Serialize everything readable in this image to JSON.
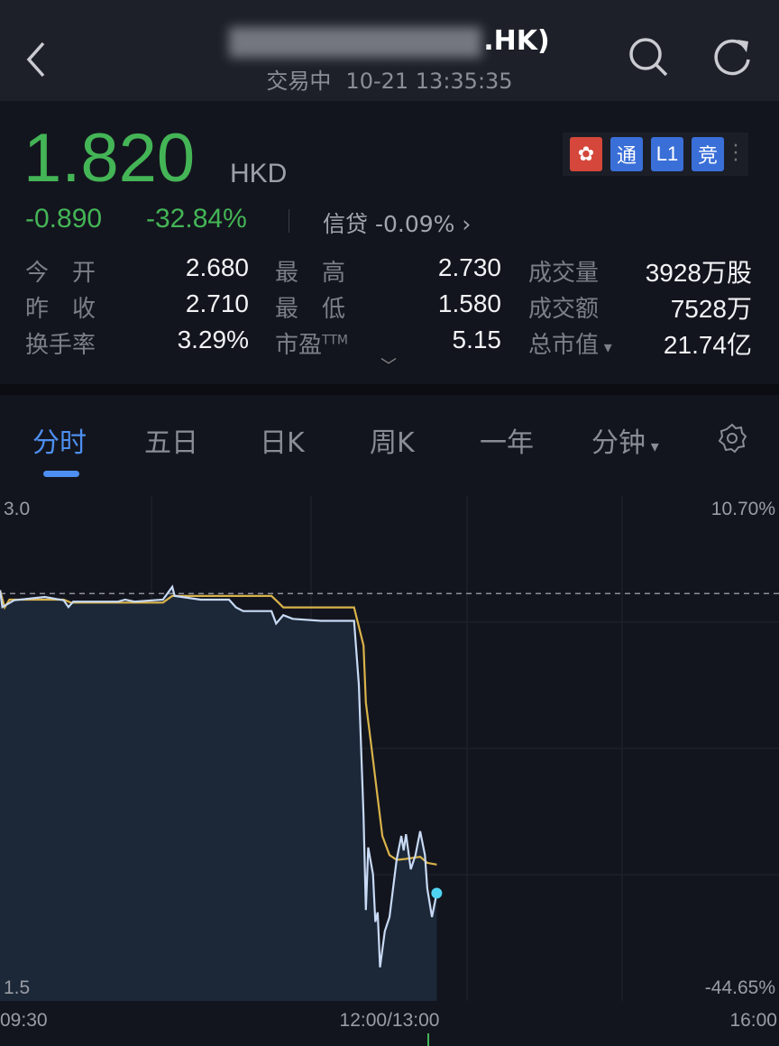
{
  "header": {
    "title_suffix": ".HK)",
    "status": "交易中",
    "datetime": "10-21 13:35:35",
    "icons": [
      "back-icon",
      "search-icon",
      "refresh-icon"
    ]
  },
  "quote": {
    "price": "1.820",
    "currency": "HKD",
    "change": "-0.890",
    "change_pct": "-32.84%",
    "credit_label": "信贷",
    "credit_value": "-0.09%",
    "price_color": "#44b556",
    "badges": [
      "hk-flag",
      "通",
      "L1",
      "竞"
    ]
  },
  "stats": [
    {
      "label": "今　开",
      "value": "2.680"
    },
    {
      "label": "最　高",
      "value": "2.730"
    },
    {
      "label": "成交量",
      "value": "3928万股"
    },
    {
      "label": "昨　收",
      "value": "2.710"
    },
    {
      "label": "最　低",
      "value": "1.580"
    },
    {
      "label": "成交额",
      "value": "7528万"
    },
    {
      "label": "换手率",
      "value": "3.29%"
    },
    {
      "label": "市盈",
      "sup": "TTM",
      "value": "5.15"
    },
    {
      "label": "总市值",
      "value": "21.74亿"
    }
  ],
  "tabs": [
    {
      "label": "分时",
      "active": true
    },
    {
      "label": "五日"
    },
    {
      "label": "日K"
    },
    {
      "label": "周K"
    },
    {
      "label": "一年"
    },
    {
      "label": "分钟"
    }
  ],
  "chart_data": {
    "type": "line",
    "y_left_ticks": [
      "3.0",
      "1.5"
    ],
    "y_right_ticks": [
      "10.70%",
      "-44.65%"
    ],
    "x_ticks": [
      "09:30",
      "12:00/13:00",
      "16:00"
    ],
    "ylim": [
      1.5,
      3.0
    ],
    "prev_close": 2.71,
    "colors": {
      "price": "#c8daf5",
      "avg": "#d9b34a",
      "fill": "#1c2838",
      "last_point": "#4fd3f0"
    },
    "series": [
      {
        "key": "price",
        "points": [
          [
            "09:30",
            2.72
          ],
          [
            "09:31",
            2.67
          ],
          [
            "09:36",
            2.69
          ],
          [
            "09:49",
            2.7
          ],
          [
            "09:57",
            2.69
          ],
          [
            "09:59",
            2.67
          ],
          [
            "10:01",
            2.686
          ],
          [
            "10:20",
            2.686
          ],
          [
            "10:23",
            2.692
          ],
          [
            "10:27",
            2.686
          ],
          [
            "10:39",
            2.692
          ],
          [
            "10:41",
            2.711
          ],
          [
            "10:43",
            2.73
          ],
          [
            "10:44",
            2.703
          ],
          [
            "10:55",
            2.692
          ],
          [
            "11:07",
            2.692
          ],
          [
            "11:10",
            2.669
          ],
          [
            "11:13",
            2.658
          ],
          [
            "11:25",
            2.658
          ],
          [
            "11:27",
            2.621
          ],
          [
            "11:30",
            2.646
          ],
          [
            "11:34",
            2.635
          ],
          [
            "11:46",
            2.629
          ],
          [
            "13:00",
            2.629
          ],
          [
            "13:02",
            2.44
          ],
          [
            "13:04",
            2.05
          ],
          [
            "13:05",
            1.77
          ],
          [
            "13:06",
            1.956
          ],
          [
            "13:08",
            1.876
          ],
          [
            "13:09",
            1.735
          ],
          [
            "13:10",
            1.763
          ],
          [
            "13:11",
            1.6
          ],
          [
            "13:13",
            1.707
          ],
          [
            "13:15",
            1.749
          ],
          [
            "13:18",
            1.919
          ],
          [
            "13:20",
            1.99
          ],
          [
            "13:21",
            1.947
          ],
          [
            "13:22",
            1.995
          ],
          [
            "13:24",
            1.891
          ],
          [
            "13:26",
            1.933
          ],
          [
            "13:28",
            2.004
          ],
          [
            "13:30",
            1.933
          ],
          [
            "13:31",
            1.834
          ],
          [
            "13:33",
            1.749
          ],
          [
            "13:35",
            1.82
          ]
        ]
      },
      {
        "key": "avg",
        "points": [
          [
            "09:30",
            2.72
          ],
          [
            "09:32",
            2.669
          ],
          [
            "09:34",
            2.692
          ],
          [
            "09:57",
            2.692
          ],
          [
            "10:00",
            2.683
          ],
          [
            "10:39",
            2.683
          ],
          [
            "10:43",
            2.703
          ],
          [
            "11:25",
            2.703
          ],
          [
            "11:28",
            2.683
          ],
          [
            "11:30",
            2.669
          ],
          [
            "13:00",
            2.669
          ],
          [
            "13:02",
            2.612
          ],
          [
            "13:04",
            2.556
          ],
          [
            "13:05",
            2.386
          ],
          [
            "13:07",
            2.273
          ],
          [
            "13:10",
            2.103
          ],
          [
            "13:12",
            1.99
          ],
          [
            "13:15",
            1.933
          ],
          [
            "13:18",
            1.919
          ],
          [
            "13:22",
            1.922
          ],
          [
            "13:28",
            1.928
          ],
          [
            "13:31",
            1.91
          ],
          [
            "13:35",
            1.905
          ]
        ]
      }
    ]
  }
}
